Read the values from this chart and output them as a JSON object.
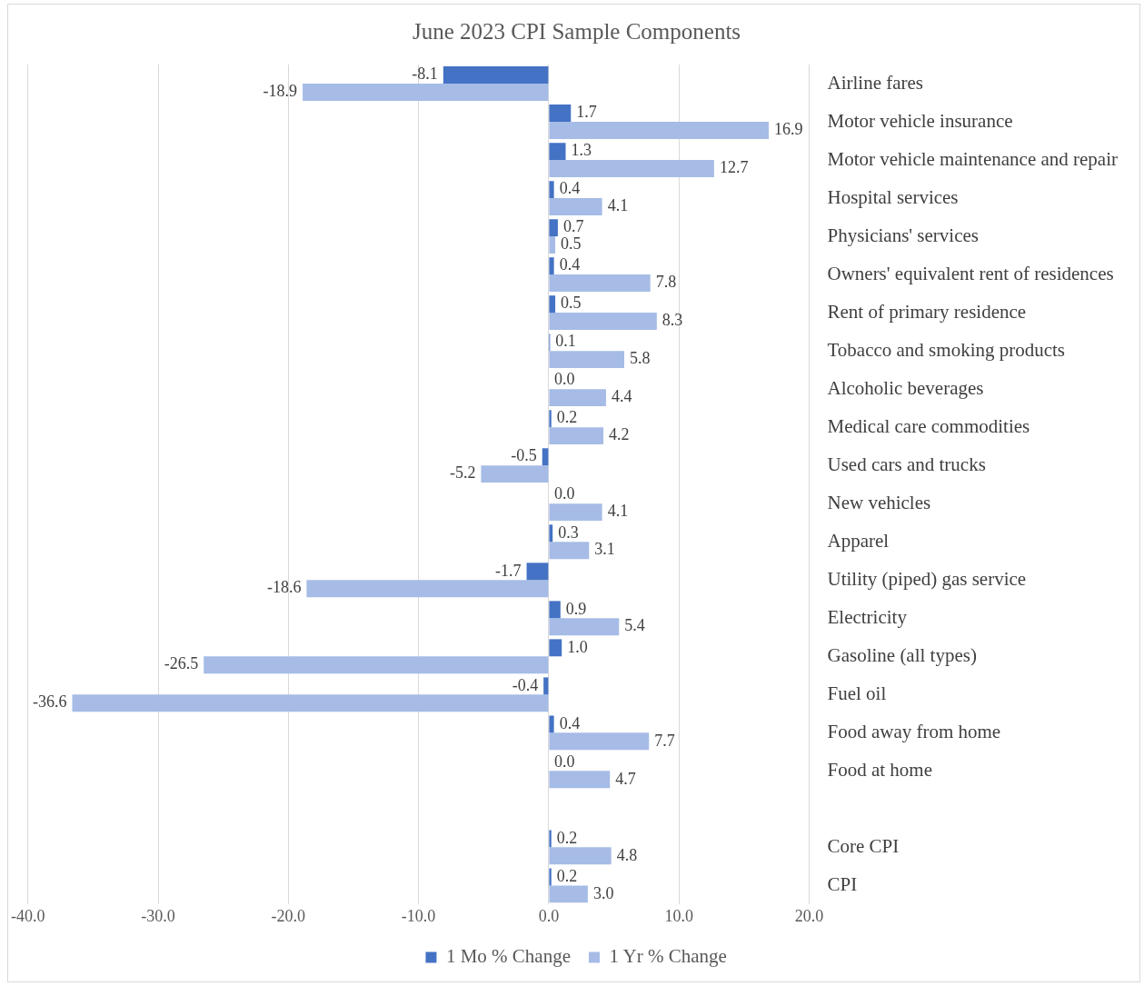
{
  "chart_data": {
    "type": "bar",
    "orientation": "horizontal",
    "title": "June 2023 CPI Sample Components",
    "categories": [
      "Airline fares",
      "Motor vehicle insurance",
      "Motor vehicle maintenance and repair",
      "Hospital services",
      "Physicians' services",
      "Owners' equivalent rent of residences",
      "Rent of primary residence",
      "Tobacco and smoking products",
      "Alcoholic beverages",
      "Medical care commodities",
      "Used cars and trucks",
      "New vehicles",
      "Apparel",
      "Utility (piped) gas service",
      "Electricity",
      "Gasoline (all types)",
      "Fuel oil",
      "Food away from home",
      "Food at home",
      null,
      "Core CPI",
      "CPI"
    ],
    "series": [
      {
        "name": "1 Mo % Change",
        "color": "#4472c4",
        "values": [
          -8.1,
          1.7,
          1.3,
          0.4,
          0.7,
          0.4,
          0.5,
          0.1,
          0.0,
          0.2,
          -0.5,
          0.0,
          0.3,
          -1.7,
          0.9,
          1.0,
          -0.4,
          0.4,
          0.0,
          null,
          0.2,
          0.2
        ],
        "value_labels": [
          "-8.1",
          "1.7",
          "1.3",
          "0.4",
          "0.7",
          "0.4",
          "0.5",
          "0.1",
          "0.0",
          "0.2",
          "-0.5",
          "0.0",
          "0.3",
          "-1.7",
          "0.9",
          "1.0",
          "-0.4",
          "0.4",
          "0.0",
          null,
          "0.2",
          "0.2"
        ]
      },
      {
        "name": "1 Yr % Change",
        "color": "#a6bce6",
        "values": [
          -18.9,
          16.9,
          12.7,
          4.1,
          0.5,
          7.8,
          8.3,
          5.8,
          4.4,
          4.2,
          -5.2,
          4.1,
          3.1,
          -18.6,
          5.4,
          -26.5,
          -36.6,
          7.7,
          4.7,
          null,
          4.8,
          3.0
        ],
        "value_labels": [
          "-18.9",
          "16.9",
          "12.7",
          "4.1",
          "0.5",
          "7.8",
          "8.3",
          "5.8",
          "4.4",
          "4.2",
          "-5.2",
          "4.1",
          "3.1",
          "-18.6",
          "5.4",
          "-26.5",
          "-36.6",
          "7.7",
          "4.7",
          null,
          "4.8",
          "3.0"
        ]
      }
    ],
    "xlim": [
      -40,
      20
    ],
    "xticks": [
      {
        "value": -40,
        "label": "-40.0"
      },
      {
        "value": -30,
        "label": "-30.0"
      },
      {
        "value": -20,
        "label": "-20.0"
      },
      {
        "value": -10,
        "label": "-10.0"
      },
      {
        "value": 0,
        "label": "0.0"
      },
      {
        "value": 10,
        "label": "10.0"
      },
      {
        "value": 20,
        "label": "20.0"
      }
    ],
    "grid": "x",
    "legend": "bottom"
  }
}
